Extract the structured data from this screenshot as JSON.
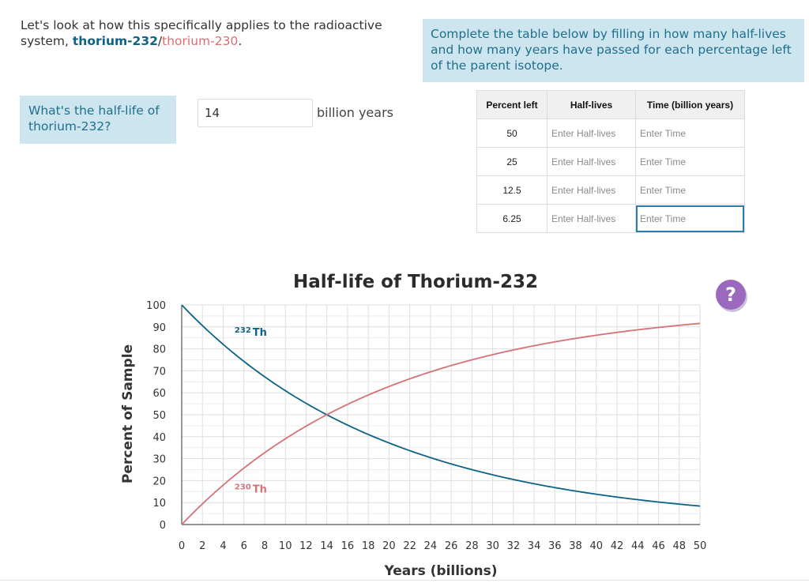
{
  "intro": {
    "text": "Let's look at how this specifically applies to the radioactive system, ",
    "parent": "thorium-232",
    "slash": "/",
    "daughter": "thorium-230",
    "period": "."
  },
  "instructions": "Complete the table below by filling in how many half-lives and how many years have passed for each percentage left of the parent isotope.",
  "question": {
    "label": "What's the half-life of thorium-232?",
    "value": "14",
    "unit": "billion years"
  },
  "table": {
    "headers": [
      "Percent left",
      "Half-lives",
      "Time (billion years)"
    ],
    "rows": [
      {
        "percent": "50",
        "halflives_placeholder": "Enter Half-lives",
        "time_placeholder": "Enter Time"
      },
      {
        "percent": "25",
        "halflives_placeholder": "Enter Half-lives",
        "time_placeholder": "Enter Time"
      },
      {
        "percent": "12.5",
        "halflives_placeholder": "Enter Half-lives",
        "time_placeholder": "Enter Time"
      },
      {
        "percent": "6.25",
        "halflives_placeholder": "Enter Half-lives",
        "time_placeholder": "Enter Time"
      }
    ]
  },
  "help": {
    "label": "?",
    "color": "#9a68bd"
  },
  "chart_data": {
    "type": "line",
    "title": "Half-life of Thorium-232",
    "xlabel": "Years (billions)",
    "ylabel": "Percent of Sample",
    "xlim": [
      0,
      50
    ],
    "ylim": [
      0,
      100
    ],
    "xticks": [
      0,
      2,
      4,
      6,
      8,
      10,
      12,
      14,
      16,
      18,
      20,
      22,
      24,
      26,
      28,
      30,
      32,
      34,
      36,
      38,
      40,
      42,
      44,
      46,
      48,
      50
    ],
    "yticks": [
      0,
      10,
      20,
      30,
      40,
      50,
      60,
      70,
      80,
      90,
      100
    ],
    "grid": true,
    "half_life": 14,
    "series": [
      {
        "name": "232 Th",
        "mass": "232",
        "symbol": "Th",
        "color": "#0d6385",
        "x": [
          0,
          5,
          10,
          14,
          20,
          25,
          30,
          35,
          40,
          45,
          50
        ],
        "values": [
          100,
          78.1,
          60.9,
          50,
          37.2,
          29.0,
          22.7,
          17.7,
          13.8,
          10.8,
          8.4
        ]
      },
      {
        "name": "230 Th",
        "mass": "230",
        "symbol": "Th",
        "color": "#d77178",
        "x": [
          0,
          5,
          10,
          14,
          20,
          25,
          30,
          35,
          40,
          45,
          50
        ],
        "values": [
          0,
          21.9,
          39.1,
          50,
          62.8,
          71.0,
          77.3,
          82.3,
          86.2,
          89.2,
          91.6
        ]
      }
    ]
  }
}
